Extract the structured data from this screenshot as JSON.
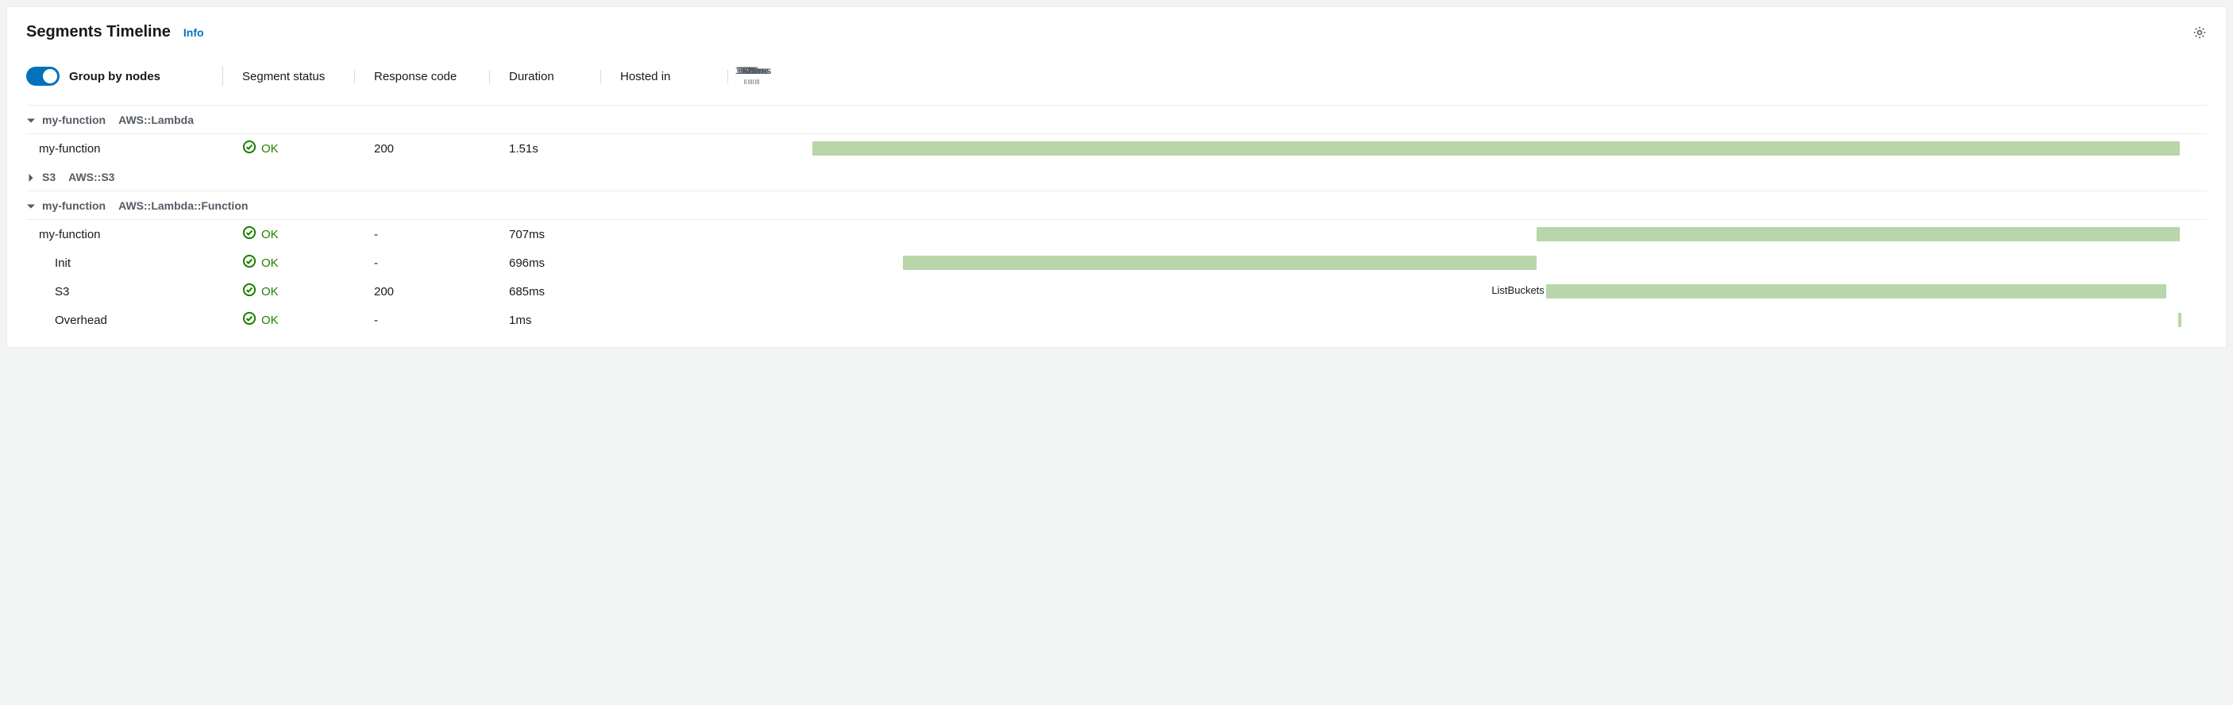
{
  "header": {
    "title": "Segments Timeline",
    "info_label": "Info"
  },
  "controls": {
    "group_by_nodes_label": "Group by nodes",
    "group_by_nodes_on": true
  },
  "columns": {
    "segment_status": "Segment status",
    "response_code": "Response code",
    "duration": "Duration",
    "hosted_in": "Hosted in"
  },
  "timeline": {
    "max_ms": 1600,
    "major_ticks": [
      {
        "ms": 0,
        "label": "0.0ms"
      },
      {
        "ms": 200,
        "label": "200ms"
      },
      {
        "ms": 400,
        "label": "400ms"
      },
      {
        "ms": 600,
        "label": "600ms"
      },
      {
        "ms": 800,
        "label": "800ms"
      },
      {
        "ms": 1000,
        "label": "1.0s"
      },
      {
        "ms": 1200,
        "label": "1.2s"
      },
      {
        "ms": 1400,
        "label": "1.4s"
      },
      {
        "ms": 1600,
        "label": "1.6s"
      }
    ],
    "bar_color": "#b8d6a9"
  },
  "colors": {
    "ok_green": "#1d8102",
    "link_blue": "#0073bb",
    "toggle_blue": "#0073bb",
    "text_gray": "#545b64",
    "border": "#eaeded"
  },
  "status_labels": {
    "ok": "OK"
  },
  "groups": [
    {
      "name": "my-function",
      "origin": "AWS::Lambda",
      "expanded": true,
      "segments": [
        {
          "name": "my-function",
          "indent": 0,
          "status": "ok",
          "response": "200",
          "duration": "1.51s",
          "bar_start_ms": 60,
          "bar_end_ms": 1570,
          "bar_label": ""
        }
      ]
    },
    {
      "name": "S3",
      "origin": "AWS::S3",
      "expanded": false,
      "segments": []
    },
    {
      "name": "my-function",
      "origin": "AWS::Lambda::Function",
      "expanded": true,
      "segments": [
        {
          "name": "my-function",
          "indent": 0,
          "status": "ok",
          "response": "-",
          "duration": "707ms",
          "bar_start_ms": 860,
          "bar_end_ms": 1570,
          "bar_label": ""
        },
        {
          "name": "Init",
          "indent": 1,
          "status": "ok",
          "response": "-",
          "duration": "696ms",
          "bar_start_ms": 160,
          "bar_end_ms": 860,
          "bar_label": ""
        },
        {
          "name": "S3",
          "indent": 1,
          "status": "ok",
          "response": "200",
          "duration": "685ms",
          "bar_start_ms": 870,
          "bar_end_ms": 1555,
          "bar_label": "ListBuckets"
        },
        {
          "name": "Overhead",
          "indent": 1,
          "status": "ok",
          "response": "-",
          "duration": "1ms",
          "bar_start_ms": 1568,
          "bar_end_ms": 1572,
          "bar_label": ""
        }
      ]
    }
  ]
}
